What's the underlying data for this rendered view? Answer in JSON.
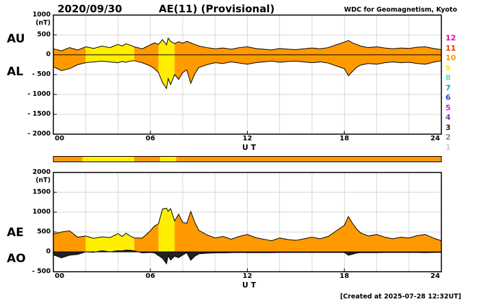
{
  "header": {
    "date": "2020/09/30",
    "title": "AE(11) (Provisional)",
    "source": "WDC for Geomagnetism, Kyoto"
  },
  "footer": {
    "created": "[Created at 2025-07-28 12:32UT]"
  },
  "axis": {
    "ut": "U T"
  },
  "chart_data": {
    "type": "area",
    "title": "AE(11) (Provisional)",
    "subtitle": "2020/09/30",
    "xlabel": "U T",
    "x_range_hours": [
      0,
      24
    ],
    "x_ticks": [
      {
        "hour": 0,
        "label": "00"
      },
      {
        "hour": 6,
        "label": "06"
      },
      {
        "hour": 12,
        "label": "12"
      },
      {
        "hour": 18,
        "label": "18"
      },
      {
        "hour": 24,
        "label": "24"
      }
    ],
    "x_hours": [
      0,
      0.5,
      1,
      1.5,
      2,
      2.5,
      3,
      3.5,
      4,
      4.25,
      4.5,
      4.75,
      5,
      5.5,
      6,
      6.25,
      6.5,
      6.75,
      7,
      7.1,
      7.25,
      7.5,
      7.75,
      8,
      8.25,
      8.5,
      8.75,
      9,
      9.5,
      10,
      10.5,
      11,
      11.5,
      12,
      12.5,
      13,
      13.5,
      14,
      14.5,
      15,
      15.5,
      16,
      16.5,
      17,
      17.5,
      18,
      18.25,
      18.5,
      18.75,
      19,
      19.5,
      20,
      20.5,
      21,
      21.5,
      22,
      22.5,
      23,
      23.5,
      24
    ],
    "panels": [
      {
        "name": "AU / AL",
        "unit": "(nT)",
        "ylim": [
          -2000,
          1000
        ],
        "yticks": [
          1000,
          500,
          0,
          -500,
          -1000,
          -1500,
          -2000
        ],
        "grid": true,
        "series": [
          {
            "name": "AU",
            "fill": "stations",
            "values": [
              150,
              100,
              180,
              120,
              200,
              160,
              220,
              180,
              260,
              220,
              280,
              240,
              200,
              150,
              250,
              300,
              260,
              380,
              250,
              420,
              340,
              280,
              330,
              290,
              340,
              300,
              260,
              220,
              180,
              150,
              170,
              140,
              180,
              200,
              160,
              140,
              120,
              160,
              140,
              130,
              150,
              170,
              150,
              180,
              250,
              320,
              360,
              300,
              260,
              220,
              180,
              200,
              170,
              150,
              170,
              160,
              190,
              200,
              160,
              130
            ]
          },
          {
            "name": "AL",
            "fill": "stations",
            "values": [
              -300,
              -400,
              -350,
              -250,
              -200,
              -180,
              -160,
              -180,
              -200,
              -170,
              -190,
              -160,
              -150,
              -200,
              -280,
              -350,
              -450,
              -700,
              -850,
              -600,
              -750,
              -500,
              -620,
              -450,
              -380,
              -720,
              -480,
              -320,
              -250,
              -200,
              -220,
              -180,
              -210,
              -240,
              -200,
              -180,
              -160,
              -190,
              -170,
              -160,
              -180,
              -200,
              -180,
              -210,
              -280,
              -350,
              -530,
              -420,
              -320,
              -260,
              -220,
              -240,
              -200,
              -180,
              -200,
              -190,
              -220,
              -240,
              -190,
              -150
            ]
          }
        ]
      },
      {
        "name": "AE / AO",
        "unit": "(nT)",
        "ylim": [
          -500,
          2000
        ],
        "yticks": [
          2000,
          1500,
          1000,
          500,
          0,
          -500
        ],
        "grid": true,
        "series": [
          {
            "name": "AE",
            "fill": "stations",
            "values": [
              450,
              500,
              530,
              370,
              400,
              340,
              380,
              360,
              460,
              390,
              470,
              400,
              350,
              350,
              530,
              650,
              710,
              1080,
              1100,
              1020,
              1090,
              780,
              950,
              740,
              720,
              1020,
              740,
              540,
              430,
              350,
              390,
              320,
              390,
              440,
              360,
              320,
              280,
              350,
              310,
              290,
              330,
              370,
              330,
              390,
              530,
              670,
              890,
              720,
              580,
              480,
              400,
              440,
              370,
              330,
              370,
              350,
              410,
              440,
              350,
              280
            ]
          },
          {
            "name": "AO",
            "fill": "#222222",
            "values": [
              -75,
              -150,
              -85,
              -65,
              0,
              -10,
              30,
              0,
              30,
              25,
              45,
              40,
              25,
              -25,
              -15,
              -25,
              -95,
              -160,
              -300,
              -90,
              -205,
              -110,
              -145,
              -80,
              -20,
              -210,
              -110,
              -50,
              -35,
              -25,
              -25,
              -20,
              -15,
              -20,
              -20,
              -20,
              -20,
              -15,
              -15,
              -15,
              -15,
              -15,
              -15,
              -15,
              -15,
              -15,
              -85,
              -60,
              -30,
              -20,
              -20,
              -20,
              -15,
              -15,
              -15,
              -15,
              -15,
              -20,
              -15,
              -10
            ]
          }
        ]
      }
    ],
    "station_segments": [
      {
        "start": 0,
        "end": 1.8,
        "stations": 10
      },
      {
        "start": 1.8,
        "end": 5.0,
        "stations": 9
      },
      {
        "start": 5.0,
        "end": 6.6,
        "stations": 10
      },
      {
        "start": 6.6,
        "end": 7.6,
        "stations": 9
      },
      {
        "start": 7.6,
        "end": 24,
        "stations": 10
      }
    ],
    "station_colors": {
      "10": "#FF9900",
      "9": "#FFEE00"
    },
    "legend": {
      "items": [
        {
          "label": "12",
          "color": "#EE00AA"
        },
        {
          "label": "11",
          "color": "#FF3300"
        },
        {
          "label": "10",
          "color": "#FF9900"
        },
        {
          "label": "9",
          "color": "#FFEE00"
        },
        {
          "label": "8",
          "color": "#55DDCC"
        },
        {
          "label": "7",
          "color": "#00AADD"
        },
        {
          "label": "6",
          "color": "#3344EE"
        },
        {
          "label": "5",
          "color": "#CC22CC"
        },
        {
          "label": "4",
          "color": "#8833BB"
        },
        {
          "label": "3",
          "color": "#222222"
        },
        {
          "label": "2",
          "color": "#888888"
        },
        {
          "label": "1",
          "color": "#CCCCCC"
        }
      ]
    }
  }
}
